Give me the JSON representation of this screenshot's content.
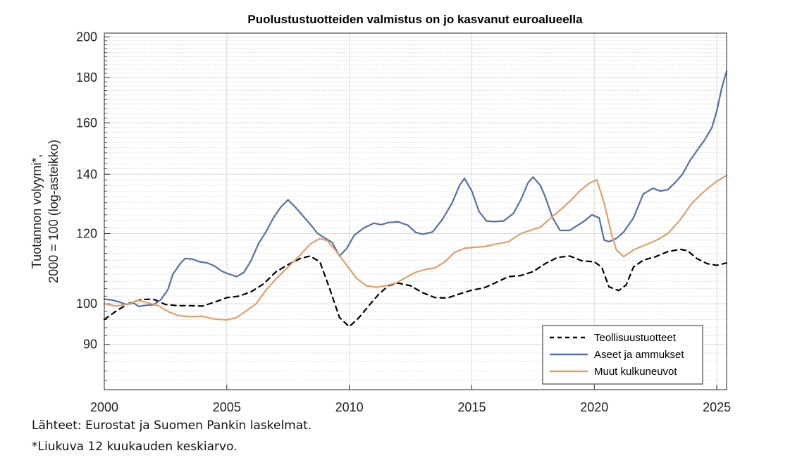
{
  "chart_data": {
    "type": "line",
    "title": "Puolustustuotteiden valmistus on jo kasvanut euroalueella",
    "ylabel_line1": "Tuotannon volyymi*,",
    "ylabel_line2": "2000 = 100 (log-asteikko)",
    "xlabel": "",
    "y_scale": "log",
    "ylim": [
      80,
      202
    ],
    "xlim": [
      2000,
      2025.4
    ],
    "grid": true,
    "y_major_ticks": [
      90,
      100,
      120,
      140,
      160,
      180,
      200
    ],
    "y_minor_ticks": [
      82,
      84,
      86,
      88,
      92,
      94,
      96,
      98,
      102,
      104,
      106,
      108,
      110,
      112,
      114,
      116,
      118,
      122,
      124,
      126,
      128,
      130,
      132,
      134,
      136,
      138,
      142,
      144,
      146,
      148,
      150,
      152,
      154,
      156,
      158,
      162,
      164,
      166,
      168,
      170,
      172,
      174,
      176,
      178,
      182,
      184,
      186,
      188,
      190,
      192,
      194,
      196,
      198
    ],
    "x_ticks": [
      2000,
      2005,
      2010,
      2015,
      2020,
      2025
    ],
    "legend_position": "bottom-right",
    "series": [
      {
        "name": "Teollisuustuotteet",
        "color": "#000000",
        "style": "dashed",
        "points": [
          [
            2000,
            96
          ],
          [
            2000.5,
            98.2
          ],
          [
            2001,
            100.1
          ],
          [
            2001.5,
            101.1
          ],
          [
            2002,
            101.2
          ],
          [
            2002.5,
            99.8
          ],
          [
            2003,
            99.5
          ],
          [
            2003.5,
            99.5
          ],
          [
            2004,
            99.4
          ],
          [
            2004.5,
            100.4
          ],
          [
            2005,
            101.6
          ],
          [
            2005.5,
            102
          ],
          [
            2006,
            103.2
          ],
          [
            2006.5,
            105.3
          ],
          [
            2007,
            108.6
          ],
          [
            2007.5,
            110.7
          ],
          [
            2008,
            112.5
          ],
          [
            2008.4,
            113.2
          ],
          [
            2008.8,
            111.5
          ],
          [
            2009.2,
            104
          ],
          [
            2009.6,
            96.5
          ],
          [
            2010,
            94.2
          ],
          [
            2010.4,
            96.5
          ],
          [
            2010.8,
            99.5
          ],
          [
            2011.2,
            102.5
          ],
          [
            2011.6,
            104.8
          ],
          [
            2012,
            105.5
          ],
          [
            2012.5,
            104.8
          ],
          [
            2013,
            102.9
          ],
          [
            2013.5,
            101.6
          ],
          [
            2014,
            101.5
          ],
          [
            2014.5,
            102.6
          ],
          [
            2015,
            103.6
          ],
          [
            2015.5,
            104.2
          ],
          [
            2016,
            105.7
          ],
          [
            2016.5,
            107.3
          ],
          [
            2017,
            107.6
          ],
          [
            2017.5,
            108.7
          ],
          [
            2018,
            111
          ],
          [
            2018.5,
            112.8
          ],
          [
            2019,
            113.2
          ],
          [
            2019.5,
            111.8
          ],
          [
            2020,
            111.5
          ],
          [
            2020.3,
            110
          ],
          [
            2020.6,
            104.5
          ],
          [
            2021,
            103.5
          ],
          [
            2021.3,
            105
          ],
          [
            2021.6,
            110
          ],
          [
            2022,
            112
          ],
          [
            2022.5,
            113
          ],
          [
            2023,
            114.5
          ],
          [
            2023.5,
            115.2
          ],
          [
            2023.8,
            114.8
          ],
          [
            2024.2,
            112.4
          ],
          [
            2024.6,
            111
          ],
          [
            2025,
            110.5
          ],
          [
            2025.4,
            111.2
          ]
        ]
      },
      {
        "name": "Aseet ja ammukset",
        "color": "#5570a8",
        "style": "solid",
        "points": [
          [
            2000,
            101.2
          ],
          [
            2000.3,
            101
          ],
          [
            2000.6,
            100.5
          ],
          [
            2000.9,
            99.8
          ],
          [
            2001.2,
            100.2
          ],
          [
            2001.4,
            99.3
          ],
          [
            2001.7,
            99.6
          ],
          [
            2002,
            99.7
          ],
          [
            2002.3,
            101
          ],
          [
            2002.6,
            103.8
          ],
          [
            2002.8,
            108
          ],
          [
            2003.1,
            111
          ],
          [
            2003.3,
            112.5
          ],
          [
            2003.6,
            112.3
          ],
          [
            2003.9,
            111.5
          ],
          [
            2004.2,
            111.2
          ],
          [
            2004.5,
            110.3
          ],
          [
            2004.8,
            108.8
          ],
          [
            2005.1,
            108
          ],
          [
            2005.4,
            107.3
          ],
          [
            2005.7,
            108.5
          ],
          [
            2006,
            112
          ],
          [
            2006.3,
            117
          ],
          [
            2006.6,
            120.5
          ],
          [
            2006.9,
            125
          ],
          [
            2007.2,
            128.5
          ],
          [
            2007.5,
            131
          ],
          [
            2007.8,
            128.5
          ],
          [
            2008.1,
            125.7
          ],
          [
            2008.4,
            123
          ],
          [
            2008.7,
            120.1
          ],
          [
            2009,
            118.6
          ],
          [
            2009.3,
            117.3
          ],
          [
            2009.6,
            113.2
          ],
          [
            2009.9,
            115.5
          ],
          [
            2010.2,
            119.5
          ],
          [
            2010.6,
            121.8
          ],
          [
            2011,
            123.3
          ],
          [
            2011.3,
            122.8
          ],
          [
            2011.6,
            123.5
          ],
          [
            2012,
            123.7
          ],
          [
            2012.4,
            122.6
          ],
          [
            2012.7,
            120.4
          ],
          [
            2013,
            119.8
          ],
          [
            2013.4,
            120.5
          ],
          [
            2013.8,
            124.5
          ],
          [
            2014.2,
            130
          ],
          [
            2014.5,
            136
          ],
          [
            2014.7,
            138.5
          ],
          [
            2015,
            134
          ],
          [
            2015.3,
            127
          ],
          [
            2015.6,
            124
          ],
          [
            2015.9,
            123.8
          ],
          [
            2016.3,
            124
          ],
          [
            2016.7,
            126.5
          ],
          [
            2017,
            131
          ],
          [
            2017.3,
            137
          ],
          [
            2017.5,
            139
          ],
          [
            2017.8,
            136
          ],
          [
            2018,
            132
          ],
          [
            2018.3,
            125
          ],
          [
            2018.6,
            121
          ],
          [
            2019,
            121
          ],
          [
            2019.3,
            122.5
          ],
          [
            2019.6,
            124
          ],
          [
            2019.9,
            126
          ],
          [
            2020.2,
            125
          ],
          [
            2020.4,
            118
          ],
          [
            2020.6,
            117.5
          ],
          [
            2020.9,
            118.5
          ],
          [
            2021.2,
            120.5
          ],
          [
            2021.6,
            125
          ],
          [
            2022,
            133
          ],
          [
            2022.4,
            135
          ],
          [
            2022.7,
            134
          ],
          [
            2023,
            134.5
          ],
          [
            2023.3,
            137
          ],
          [
            2023.6,
            140
          ],
          [
            2023.9,
            145
          ],
          [
            2024.2,
            149
          ],
          [
            2024.5,
            153
          ],
          [
            2024.8,
            158
          ],
          [
            2025,
            165
          ],
          [
            2025.2,
            175
          ],
          [
            2025.4,
            183
          ]
        ]
      },
      {
        "name": "Muut kulkuneuvot",
        "color": "#e0a06a",
        "style": "solid",
        "points": [
          [
            2000,
            100
          ],
          [
            2000.5,
            99.4
          ],
          [
            2001,
            100
          ],
          [
            2001.4,
            100.9
          ],
          [
            2001.8,
            100.2
          ],
          [
            2002.2,
            99.5
          ],
          [
            2002.6,
            98
          ],
          [
            2003,
            97
          ],
          [
            2003.5,
            96.7
          ],
          [
            2004,
            96.8
          ],
          [
            2004.5,
            96.1
          ],
          [
            2005,
            95.9
          ],
          [
            2005.4,
            96.5
          ],
          [
            2005.8,
            98.2
          ],
          [
            2006.2,
            100
          ],
          [
            2006.6,
            103.6
          ],
          [
            2007,
            106.6
          ],
          [
            2007.5,
            110
          ],
          [
            2008,
            113.5
          ],
          [
            2008.4,
            116.8
          ],
          [
            2008.8,
            118.5
          ],
          [
            2009.1,
            117.8
          ],
          [
            2009.5,
            114.3
          ],
          [
            2009.9,
            110.5
          ],
          [
            2010.3,
            106.8
          ],
          [
            2010.7,
            104.8
          ],
          [
            2011.1,
            104.4
          ],
          [
            2011.5,
            104.8
          ],
          [
            2011.9,
            105.5
          ],
          [
            2012.3,
            107
          ],
          [
            2012.7,
            108.5
          ],
          [
            2013.1,
            109.3
          ],
          [
            2013.5,
            109.8
          ],
          [
            2013.9,
            111.5
          ],
          [
            2014.3,
            114.3
          ],
          [
            2014.7,
            115.5
          ],
          [
            2015.1,
            115.8
          ],
          [
            2015.5,
            116
          ],
          [
            2016,
            116.8
          ],
          [
            2016.5,
            117.5
          ],
          [
            2017,
            120
          ],
          [
            2017.5,
            121.3
          ],
          [
            2017.8,
            122
          ],
          [
            2018.2,
            124.8
          ],
          [
            2018.6,
            127.5
          ],
          [
            2019,
            130.5
          ],
          [
            2019.4,
            134
          ],
          [
            2019.8,
            136.8
          ],
          [
            2020.1,
            138
          ],
          [
            2020.4,
            130
          ],
          [
            2020.7,
            120
          ],
          [
            2020.9,
            115
          ],
          [
            2021.2,
            113
          ],
          [
            2021.6,
            115
          ],
          [
            2022,
            116.3
          ],
          [
            2022.5,
            117.8
          ],
          [
            2023,
            120
          ],
          [
            2023.5,
            124.3
          ],
          [
            2024,
            130
          ],
          [
            2024.5,
            134
          ],
          [
            2025,
            137.5
          ],
          [
            2025.4,
            139.5
          ]
        ]
      }
    ]
  },
  "notes": {
    "source": "Lähteet: Eurostat ja Suomen Pankin laskelmat.",
    "footnote": "*Liukuva 12 kuukauden keskiarvo."
  }
}
